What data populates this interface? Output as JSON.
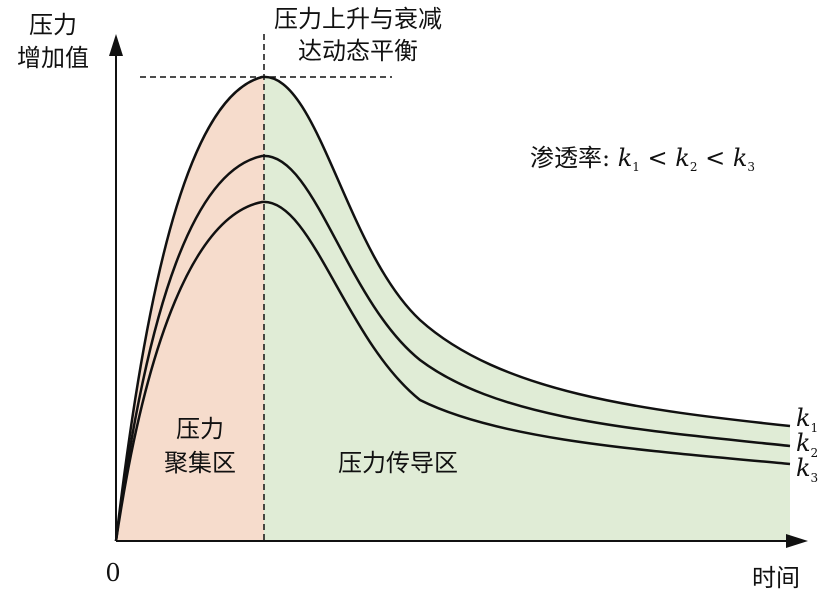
{
  "y_axis_label": [
    "压力",
    "增加值"
  ],
  "x_axis_label": "时间",
  "origin_label": "0",
  "peak_annotation": [
    "压力上升与衰减",
    "达动态平衡"
  ],
  "permeability": {
    "prefix": "渗透率: ",
    "k": "k",
    "lt": " < ",
    "subscripts": [
      "1",
      "2",
      "3"
    ]
  },
  "zones": {
    "accumulation": [
      "压力",
      "聚集区"
    ],
    "conduction": "压力传导区"
  },
  "curves": [
    {
      "name": "k",
      "sub": "1"
    },
    {
      "name": "k",
      "sub": "2"
    },
    {
      "name": "k",
      "sub": "3"
    }
  ],
  "colors": {
    "accumulation_fill": "#f6dccc",
    "conduction_fill": "#e0ecd6",
    "line": "#111111"
  }
}
